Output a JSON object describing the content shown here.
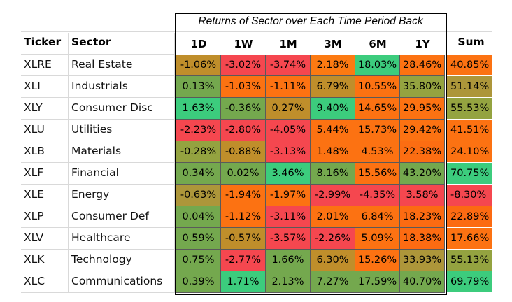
{
  "table": {
    "title": "Returns of Sector over Each Time Period Back",
    "header_ticker": "Ticker",
    "header_sector": "Sector",
    "header_sum": "Sum",
    "periods": [
      "1D",
      "1W",
      "1M",
      "3M",
      "6M",
      "1Y"
    ],
    "rows": [
      {
        "ticker": "XLRE",
        "sector": "Real Estate",
        "cells": [
          {
            "text": "-1.06%",
            "color": "#bf8e2b"
          },
          {
            "text": "-3.02%",
            "color": "#f5474f"
          },
          {
            "text": "-3.74%",
            "color": "#f5474f"
          },
          {
            "text": "2.18%",
            "color": "#fc7a12"
          },
          {
            "text": "18.03%",
            "color": "#3ccc7d"
          },
          {
            "text": "28.46%",
            "color": "#fc7212"
          }
        ],
        "sum": {
          "text": "40.85%",
          "color": "#fc7212"
        }
      },
      {
        "ticker": "XLI",
        "sector": "Industrials",
        "cells": [
          {
            "text": "0.13%",
            "color": "#74a84e"
          },
          {
            "text": "-1.03%",
            "color": "#fc7212"
          },
          {
            "text": "-1.11%",
            "color": "#fc7212"
          },
          {
            "text": "6.79%",
            "color": "#bf8e2b"
          },
          {
            "text": "10.55%",
            "color": "#fc7212"
          },
          {
            "text": "35.80%",
            "color": "#94a340"
          }
        ],
        "sum": {
          "text": "51.14%",
          "color": "#ad963a"
        }
      },
      {
        "ticker": "XLY",
        "sector": "Consumer Disc",
        "cells": [
          {
            "text": "1.63%",
            "color": "#3ccc7d"
          },
          {
            "text": "-0.36%",
            "color": "#74a84e"
          },
          {
            "text": "0.27%",
            "color": "#bf8e2b"
          },
          {
            "text": "9.40%",
            "color": "#3ccc7d"
          },
          {
            "text": "14.65%",
            "color": "#fc7212"
          },
          {
            "text": "29.95%",
            "color": "#fc7212"
          }
        ],
        "sum": {
          "text": "55.53%",
          "color": "#94a340"
        }
      },
      {
        "ticker": "XLU",
        "sector": "Utilities",
        "cells": [
          {
            "text": "-2.23%",
            "color": "#f5474f"
          },
          {
            "text": "-2.80%",
            "color": "#f5474f"
          },
          {
            "text": "-4.05%",
            "color": "#f5474f"
          },
          {
            "text": "5.44%",
            "color": "#fc7212"
          },
          {
            "text": "15.73%",
            "color": "#fc7212"
          },
          {
            "text": "29.42%",
            "color": "#fc7212"
          }
        ],
        "sum": {
          "text": "41.51%",
          "color": "#fc7212"
        }
      },
      {
        "ticker": "XLB",
        "sector": "Materials",
        "cells": [
          {
            "text": "-0.28%",
            "color": "#94a340"
          },
          {
            "text": "-0.88%",
            "color": "#bf8e2b"
          },
          {
            "text": "-3.13%",
            "color": "#f5474f"
          },
          {
            "text": "1.48%",
            "color": "#fc7212"
          },
          {
            "text": "4.53%",
            "color": "#fc7212"
          },
          {
            "text": "22.38%",
            "color": "#fc6d12"
          }
        ],
        "sum": {
          "text": "24.10%",
          "color": "#fc7212"
        }
      },
      {
        "ticker": "XLF",
        "sector": "Financial",
        "cells": [
          {
            "text": "0.34%",
            "color": "#74a84e"
          },
          {
            "text": "0.02%",
            "color": "#74a84e"
          },
          {
            "text": "3.46%",
            "color": "#3ccc7d"
          },
          {
            "text": "8.16%",
            "color": "#74a84e"
          },
          {
            "text": "15.56%",
            "color": "#fc7212"
          },
          {
            "text": "43.20%",
            "color": "#74a84e"
          }
        ],
        "sum": {
          "text": "70.75%",
          "color": "#3ccc7d"
        }
      },
      {
        "ticker": "XLE",
        "sector": "Energy",
        "cells": [
          {
            "text": "-0.63%",
            "color": "#ad963a"
          },
          {
            "text": "-1.94%",
            "color": "#fc7212"
          },
          {
            "text": "-1.97%",
            "color": "#fc7212"
          },
          {
            "text": "-2.99%",
            "color": "#f5474f"
          },
          {
            "text": "-4.35%",
            "color": "#f5474f"
          },
          {
            "text": "3.58%",
            "color": "#f5474f"
          }
        ],
        "sum": {
          "text": "-8.30%",
          "color": "#f5474f"
        }
      },
      {
        "ticker": "XLP",
        "sector": "Consumer Def",
        "cells": [
          {
            "text": "0.04%",
            "color": "#74a84e"
          },
          {
            "text": "-1.12%",
            "color": "#fc7212"
          },
          {
            "text": "-3.11%",
            "color": "#f5474f"
          },
          {
            "text": "2.01%",
            "color": "#fc7212"
          },
          {
            "text": "6.84%",
            "color": "#fc7212"
          },
          {
            "text": "18.23%",
            "color": "#fc6b12"
          }
        ],
        "sum": {
          "text": "22.89%",
          "color": "#fc6a12"
        }
      },
      {
        "ticker": "XLV",
        "sector": "Healthcare",
        "cells": [
          {
            "text": "0.59%",
            "color": "#74a84e"
          },
          {
            "text": "-0.57%",
            "color": "#bf8e2b"
          },
          {
            "text": "-3.57%",
            "color": "#f5474f"
          },
          {
            "text": "-2.26%",
            "color": "#f5474f"
          },
          {
            "text": "5.09%",
            "color": "#fc7212"
          },
          {
            "text": "18.38%",
            "color": "#fc6b12"
          }
        ],
        "sum": {
          "text": "17.66%",
          "color": "#fc7212"
        }
      },
      {
        "ticker": "XLK",
        "sector": "Technology",
        "cells": [
          {
            "text": "0.75%",
            "color": "#74a84e"
          },
          {
            "text": "-2.77%",
            "color": "#f5474f"
          },
          {
            "text": "1.66%",
            "color": "#74a84e"
          },
          {
            "text": "6.30%",
            "color": "#bf8e2b"
          },
          {
            "text": "15.26%",
            "color": "#fc7212"
          },
          {
            "text": "33.93%",
            "color": "#ad963a"
          }
        ],
        "sum": {
          "text": "55.13%",
          "color": "#94a340"
        }
      },
      {
        "ticker": "XLC",
        "sector": "Communications",
        "cells": [
          {
            "text": "0.39%",
            "color": "#74a84e"
          },
          {
            "text": "1.71%",
            "color": "#3ccc7d"
          },
          {
            "text": "2.13%",
            "color": "#74a84e"
          },
          {
            "text": "7.27%",
            "color": "#74a84e"
          },
          {
            "text": "17.59%",
            "color": "#74a84e"
          },
          {
            "text": "40.70%",
            "color": "#74a84e"
          }
        ],
        "sum": {
          "text": "69.79%",
          "color": "#3ccc7d"
        }
      }
    ]
  },
  "chart_data": {
    "type": "heatmap",
    "title": "Returns of Sector over Each Time Period Back",
    "columns": [
      "1D",
      "1W",
      "1M",
      "3M",
      "6M",
      "1Y",
      "Sum"
    ],
    "row_labels": [
      "XLRE",
      "XLI",
      "XLY",
      "XLU",
      "XLB",
      "XLF",
      "XLE",
      "XLP",
      "XLV",
      "XLK",
      "XLC"
    ],
    "row_sectors": [
      "Real Estate",
      "Industrials",
      "Consumer Disc",
      "Utilities",
      "Materials",
      "Financial",
      "Energy",
      "Consumer Def",
      "Healthcare",
      "Technology",
      "Communications"
    ],
    "values": [
      [
        -1.06,
        -3.02,
        -3.74,
        2.18,
        18.03,
        28.46,
        40.85
      ],
      [
        0.13,
        -1.03,
        -1.11,
        6.79,
        10.55,
        35.8,
        51.14
      ],
      [
        1.63,
        -0.36,
        0.27,
        9.4,
        14.65,
        29.95,
        55.53
      ],
      [
        -2.23,
        -2.8,
        -4.05,
        5.44,
        15.73,
        29.42,
        41.51
      ],
      [
        -0.28,
        -0.88,
        -3.13,
        1.48,
        4.53,
        22.38,
        24.1
      ],
      [
        0.34,
        0.02,
        3.46,
        8.16,
        15.56,
        43.2,
        70.75
      ],
      [
        -0.63,
        -1.94,
        -1.97,
        -2.99,
        -4.35,
        3.58,
        -8.3
      ],
      [
        0.04,
        -1.12,
        -3.11,
        2.01,
        6.84,
        18.23,
        22.89
      ],
      [
        0.59,
        -0.57,
        -3.57,
        -2.26,
        5.09,
        18.38,
        17.66
      ],
      [
        0.75,
        -2.77,
        1.66,
        6.3,
        15.26,
        33.93,
        55.13
      ],
      [
        0.39,
        1.71,
        2.13,
        7.27,
        17.59,
        40.7,
        69.79
      ]
    ],
    "unit": "%",
    "grid": true,
    "legend": "none"
  }
}
